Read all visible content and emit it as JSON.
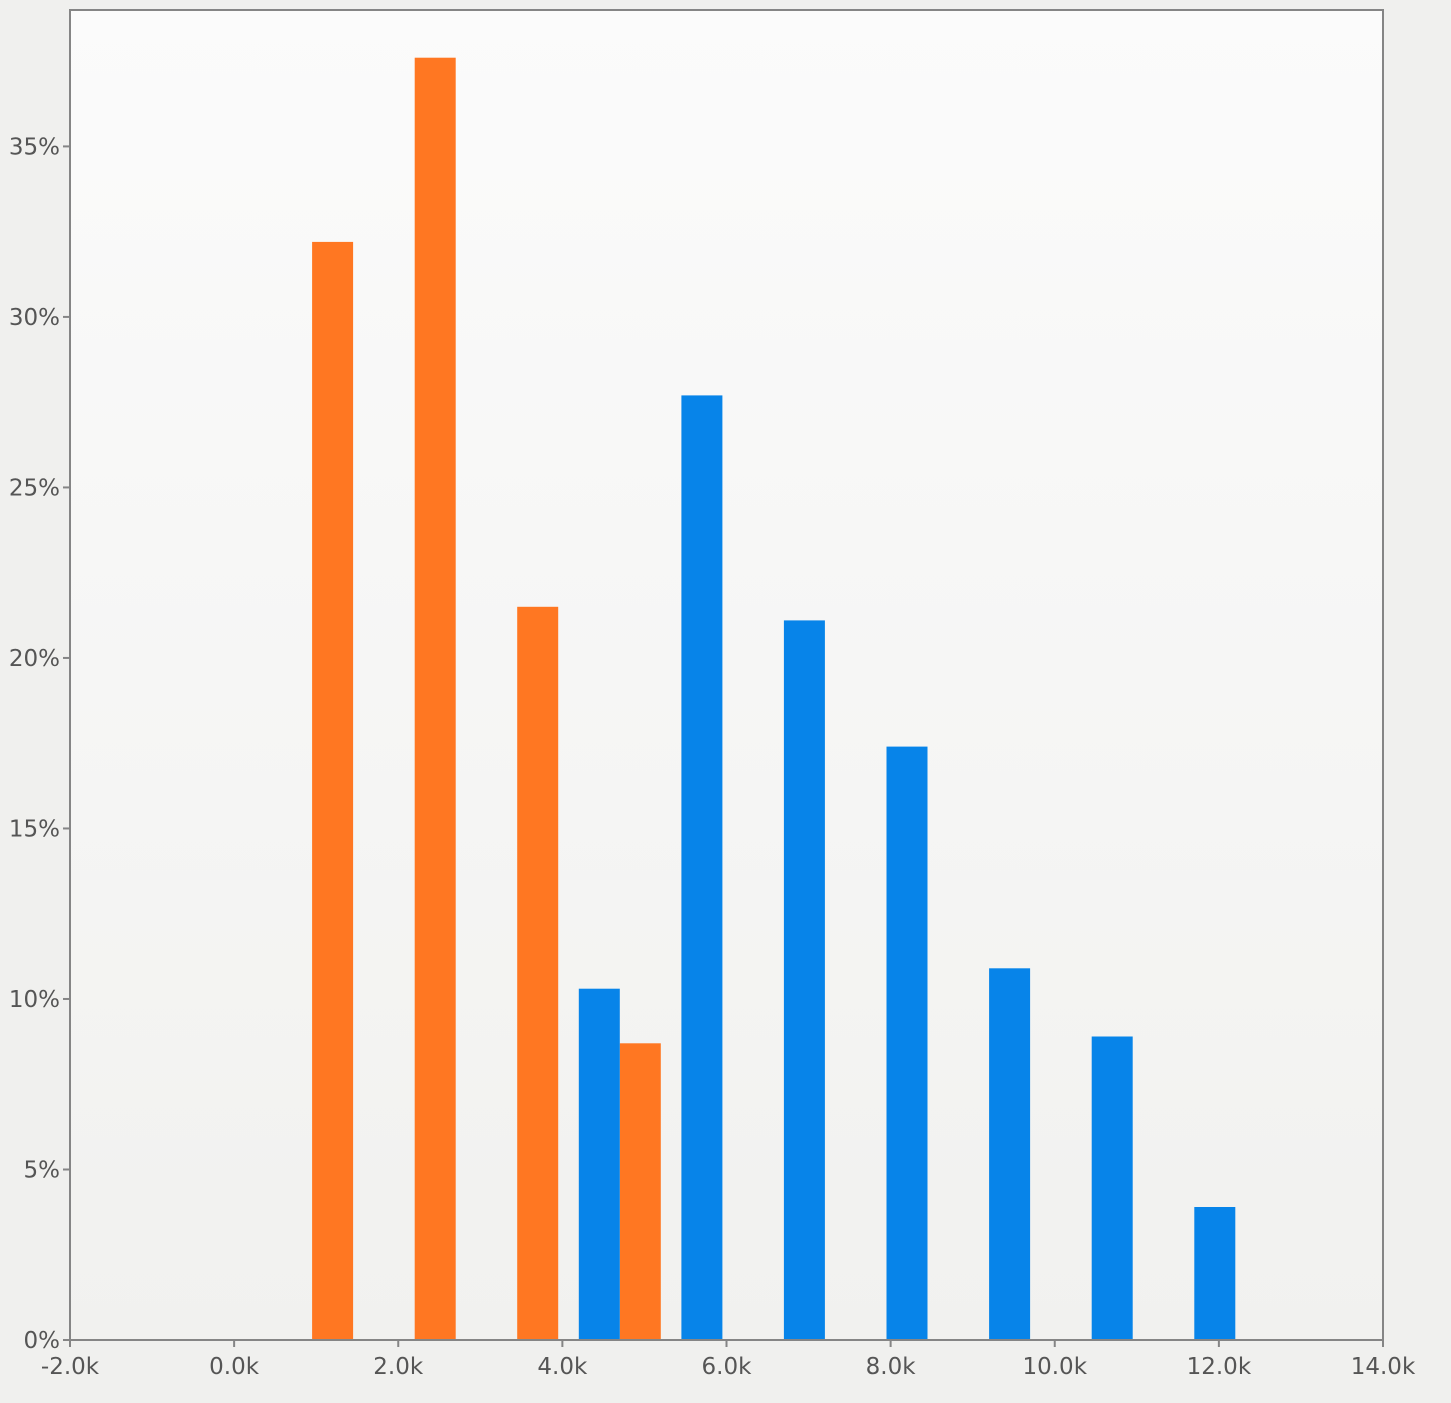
{
  "chart_data": {
    "type": "bar",
    "title": "",
    "xlabel": "",
    "ylabel": "",
    "xlim": [
      -2000,
      14000
    ],
    "ylim": [
      0,
      39
    ],
    "x_ticks": [
      -2000,
      0,
      2000,
      4000,
      6000,
      8000,
      10000,
      12000,
      14000
    ],
    "x_tick_labels": [
      "-2.0k",
      "0.0k",
      "2.0k",
      "4.0k",
      "6.0k",
      "8.0k",
      "10.0k",
      "12.0k",
      "14.0k"
    ],
    "y_ticks": [
      0,
      5,
      10,
      15,
      20,
      25,
      30,
      35
    ],
    "y_tick_labels": [
      "0%",
      "5%",
      "10%",
      "15%",
      "20%",
      "25%",
      "30%",
      "35%"
    ],
    "grid": false,
    "legend": "none",
    "bar_width": 500,
    "series": [
      {
        "color": "#ff7722",
        "points": [
          {
            "x": 1200,
            "y": 32.2
          },
          {
            "x": 2450,
            "y": 37.6
          },
          {
            "x": 3700,
            "y": 21.5
          },
          {
            "x": 4950,
            "y": 8.7
          }
        ]
      },
      {
        "color": "#0784e9",
        "points": [
          {
            "x": 4450,
            "y": 10.3
          },
          {
            "x": 5700,
            "y": 27.7
          },
          {
            "x": 6950,
            "y": 21.1
          },
          {
            "x": 8200,
            "y": 17.4
          },
          {
            "x": 9450,
            "y": 10.9
          },
          {
            "x": 10700,
            "y": 8.9
          },
          {
            "x": 11950,
            "y": 3.9
          }
        ]
      }
    ]
  }
}
